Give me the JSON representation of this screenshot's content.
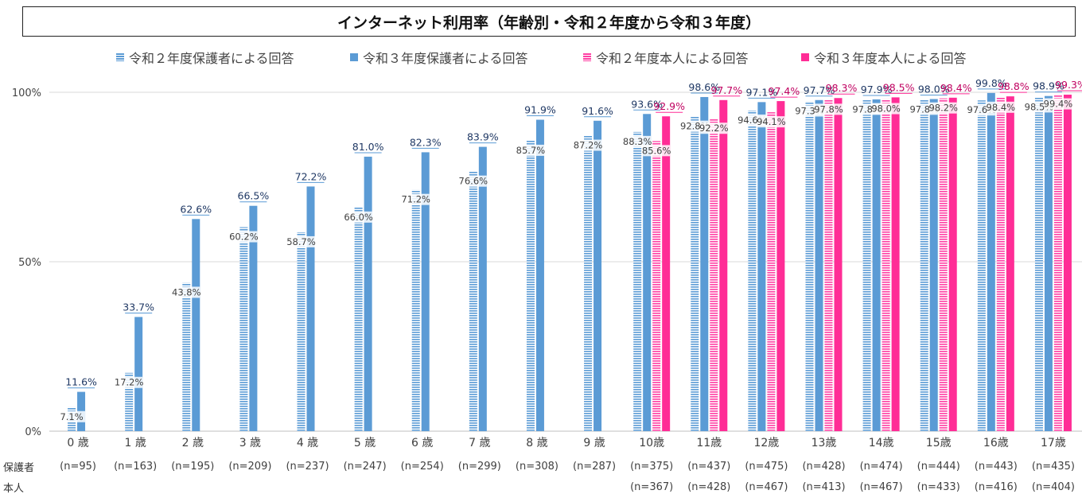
{
  "title": "インターネット利用率（年齢別・令和２年度から令和３年度）",
  "row_labels": {
    "guardian": "保護者",
    "self": "本人"
  },
  "colors": {
    "r2_guardian": "#5b9bd5",
    "r3_guardian": "#5b9bd5",
    "r2_self": "#ff3fa4",
    "r3_self": "#ff2d96"
  },
  "chart_data": {
    "type": "bar",
    "title": "インターネット利用率（年齢別・令和２年度から令和３年度）",
    "ylim": [
      0,
      100
    ],
    "yticks": [
      "0%",
      "50%",
      "100%"
    ],
    "grid": true,
    "legend_position": "top",
    "categories": [
      "0歳",
      "1歳",
      "2歳",
      "3歳",
      "4歳",
      "5歳",
      "6歳",
      "7歳",
      "8歳",
      "9歳",
      "10歳",
      "11歳",
      "12歳",
      "13歳",
      "14歳",
      "15歳",
      "16歳",
      "17歳"
    ],
    "category_labels": [
      "0 歳",
      "1 歳",
      "2 歳",
      "3 歳",
      "4 歳",
      "5 歳",
      "6 歳",
      "7 歳",
      "8 歳",
      "9 歳",
      "10歳",
      "11歳",
      "12歳",
      "13歳",
      "14歳",
      "15歳",
      "16歳",
      "17歳"
    ],
    "n_guardian": [
      "(n=95)",
      "(n=163)",
      "(n=195)",
      "(n=209)",
      "(n=237)",
      "(n=247)",
      "(n=254)",
      "(n=299)",
      "(n=308)",
      "(n=287)",
      "(n=375)",
      "(n=437)",
      "(n=475)",
      "(n=428)",
      "(n=474)",
      "(n=444)",
      "(n=443)",
      "(n=435)"
    ],
    "n_self": [
      "",
      "",
      "",
      "",
      "",
      "",
      "",
      "",
      "",
      "",
      "(n=367)",
      "(n=428)",
      "(n=467)",
      "(n=413)",
      "(n=467)",
      "(n=433)",
      "(n=416)",
      "(n=404)"
    ],
    "series": [
      {
        "name": "令和２年度保護者による回答",
        "pattern": "striped",
        "values": [
          7.1,
          17.2,
          43.8,
          60.2,
          58.7,
          66.0,
          71.2,
          76.6,
          85.7,
          87.2,
          88.3,
          92.8,
          94.6,
          97.3,
          97.8,
          97.8,
          97.6,
          98.5
        ],
        "labels": [
          "7.1%",
          "17.2%",
          "43.8%",
          "60.2%",
          "58.7%",
          "66.0%",
          "71.2%",
          "76.6%",
          "85.7%",
          "87.2%",
          "88.3%",
          "92.8%",
          "94.6%",
          "97.3%",
          "97.8%",
          "97.8%",
          "97.6%",
          "98.5%"
        ]
      },
      {
        "name": "令和３年度保護者による回答",
        "pattern": "solid",
        "values": [
          11.6,
          33.7,
          62.6,
          66.5,
          72.2,
          81.0,
          82.3,
          83.9,
          91.9,
          91.6,
          93.6,
          98.6,
          97.1,
          97.7,
          97.9,
          98.0,
          99.8,
          98.9
        ],
        "labels": [
          "11.6%",
          "33.7%",
          "62.6%",
          "66.5%",
          "72.2%",
          "81.0%",
          "82.3%",
          "83.9%",
          "91.9%",
          "91.6%",
          "93.6%",
          "98.6%",
          "97.1%",
          "97.7%",
          "97.9%",
          "98.0%",
          "99.8%",
          "98.9%"
        ]
      },
      {
        "name": "令和２年度本人による回答",
        "pattern": "striped",
        "values": [
          null,
          null,
          null,
          null,
          null,
          null,
          null,
          null,
          null,
          null,
          85.6,
          92.2,
          94.1,
          97.8,
          98.0,
          98.2,
          98.4,
          99.4
        ],
        "labels": [
          "",
          "",
          "",
          "",
          "",
          "",
          "",
          "",
          "",
          "",
          "85.6%",
          "92.2%",
          "94.1%",
          "97.8%",
          "98.0%",
          "98.2%",
          "98.4%",
          "99.4%"
        ]
      },
      {
        "name": "令和３年度本人による回答",
        "pattern": "solid",
        "values": [
          null,
          null,
          null,
          null,
          null,
          null,
          null,
          null,
          null,
          null,
          92.9,
          97.7,
          97.4,
          98.3,
          98.5,
          98.4,
          98.8,
          99.3
        ],
        "labels": [
          "",
          "",
          "",
          "",
          "",
          "",
          "",
          "",
          "",
          "",
          "92.9%",
          "97.7%",
          "97.4%",
          "98.3%",
          "98.5%",
          "98.4%",
          "98.8%",
          "99.3%"
        ]
      }
    ]
  }
}
